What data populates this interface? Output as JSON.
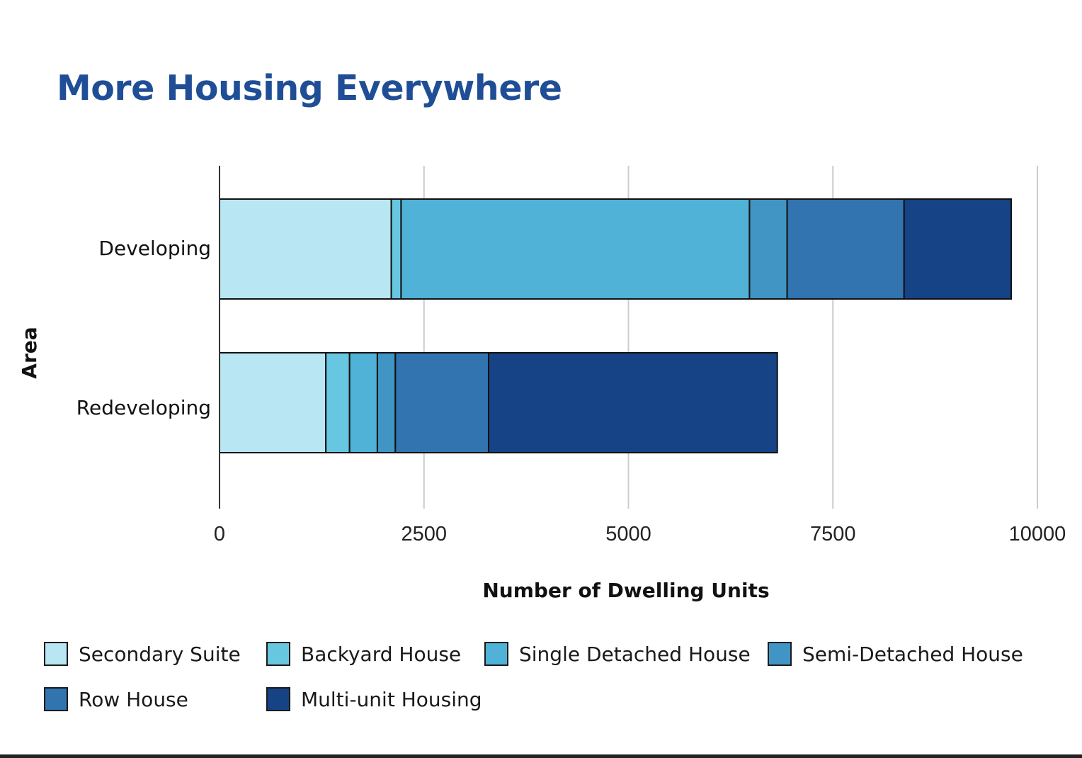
{
  "chart_data": {
    "type": "bar",
    "orientation": "horizontal",
    "stacked": true,
    "title": "More Housing Everywhere",
    "xlabel": "Number of Dwelling Units",
    "ylabel": "Area",
    "xlim": [
      0,
      10000
    ],
    "xticks": [
      0,
      2500,
      5000,
      7500,
      10000
    ],
    "xtick_labels": [
      "0",
      "2500",
      "5000",
      "7500",
      "10000"
    ],
    "grid": "vertical",
    "legend_position": "bottom",
    "categories": [
      "Developing",
      "Redeveloping"
    ],
    "series": [
      {
        "name": "Secondary Suite",
        "color": "#b8e6f2",
        "values": [
          2100,
          1300
        ]
      },
      {
        "name": "Backyard House",
        "color": "#67c7e0",
        "values": [
          120,
          290
        ]
      },
      {
        "name": "Single Detached House",
        "color": "#4fb2d6",
        "values": [
          4260,
          340
        ]
      },
      {
        "name": "Semi-Detached House",
        "color": "#4195c5",
        "values": [
          460,
          220
        ]
      },
      {
        "name": "Row House",
        "color": "#3174b0",
        "values": [
          1430,
          1140
        ]
      },
      {
        "name": "Multi-unit Housing",
        "color": "#164286",
        "values": [
          1310,
          3530
        ]
      }
    ]
  }
}
